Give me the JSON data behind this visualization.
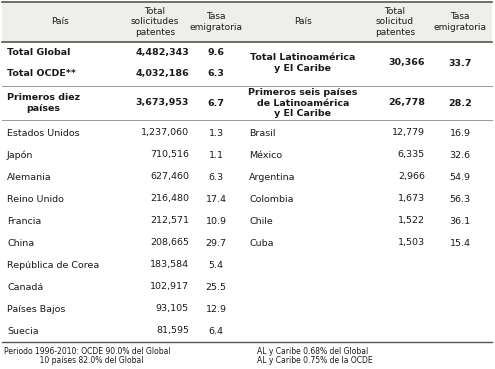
{
  "col_headers_left": [
    "País",
    "Total\nsolicitudes\npatentes",
    "Tasa\nemigratoria"
  ],
  "col_headers_right": [
    "País",
    "Total\nsolicitud\npatentes",
    "Tasa\nemigratoria"
  ],
  "left_rows": [
    {
      "label": "Total Global",
      "val": "4,482,343",
      "tasa": "9.6",
      "bold": true,
      "sep_after": false
    },
    {
      "label": "Total OCDE**",
      "val": "4,032,186",
      "tasa": "6.3",
      "bold": true,
      "sep_after": true
    },
    {
      "label": "Primeros diez\npaíses",
      "val": "3,673,953",
      "tasa": "6.7",
      "bold": true,
      "sep_after": true
    },
    {
      "label": "Estados Unidos",
      "val": "1,237,060",
      "tasa": "1.3",
      "bold": false,
      "sep_after": false
    },
    {
      "label": "Japón",
      "val": "710,516",
      "tasa": "1.1",
      "bold": false,
      "sep_after": false
    },
    {
      "label": "Alemania",
      "val": "627,460",
      "tasa": "6.3",
      "bold": false,
      "sep_after": false
    },
    {
      "label": "Reino Unido",
      "val": "216,480",
      "tasa": "17.4",
      "bold": false,
      "sep_after": false
    },
    {
      "label": "Francia",
      "val": "212,571",
      "tasa": "10.9",
      "bold": false,
      "sep_after": false
    },
    {
      "label": "China",
      "val": "208,665",
      "tasa": "29.7",
      "bold": false,
      "sep_after": false
    },
    {
      "label": "República de Corea",
      "val": "183,584",
      "tasa": "5.4",
      "bold": false,
      "sep_after": false
    },
    {
      "label": "Canadá",
      "val": "102,917",
      "tasa": "25.5",
      "bold": false,
      "sep_after": false
    },
    {
      "label": "Países Bajos",
      "val": "93,105",
      "tasa": "12.9",
      "bold": false,
      "sep_after": false
    },
    {
      "label": "Suecia",
      "val": "81,595",
      "tasa": "6.4",
      "bold": false,
      "sep_after": false
    }
  ],
  "right_rows": [
    {
      "label": "Total Latinoamérica\ny El Caribe",
      "val": "30,366",
      "tasa": "33.7",
      "bold": true,
      "sep_after": true,
      "rowspan": 2
    },
    {
      "label": "",
      "val": "",
      "tasa": "",
      "bold": false,
      "sep_after": false,
      "rowspan": 1
    },
    {
      "label": "Primeros seis países\nde Latinoamérica\ny El Caribe",
      "val": "26,778",
      "tasa": "28.2",
      "bold": true,
      "sep_after": true,
      "rowspan": 1
    },
    {
      "label": "Brasil",
      "val": "12,779",
      "tasa": "16.9",
      "bold": false,
      "sep_after": false,
      "rowspan": 1
    },
    {
      "label": "México",
      "val": "6,335",
      "tasa": "32.6",
      "bold": false,
      "sep_after": false,
      "rowspan": 1
    },
    {
      "label": "Argentina",
      "val": "2,966",
      "tasa": "54.9",
      "bold": false,
      "sep_after": false,
      "rowspan": 1
    },
    {
      "label": "Colombia",
      "val": "1,673",
      "tasa": "56.3",
      "bold": false,
      "sep_after": false,
      "rowspan": 1
    },
    {
      "label": "Chile",
      "val": "1,522",
      "tasa": "36.1",
      "bold": false,
      "sep_after": false,
      "rowspan": 1
    },
    {
      "label": "Cuba",
      "val": "1,503",
      "tasa": "15.4",
      "bold": false,
      "sep_after": false,
      "rowspan": 1
    },
    {
      "label": "",
      "val": "",
      "tasa": "",
      "bold": false,
      "sep_after": false,
      "rowspan": 1
    },
    {
      "label": "",
      "val": "",
      "tasa": "",
      "bold": false,
      "sep_after": false,
      "rowspan": 1
    },
    {
      "label": "",
      "val": "",
      "tasa": "",
      "bold": false,
      "sep_after": false,
      "rowspan": 1
    },
    {
      "label": "",
      "val": "",
      "tasa": "",
      "bold": false,
      "sep_after": false,
      "rowspan": 1
    }
  ],
  "footer1": "Periodo 1996-2010: OCDE 90.0% del Global",
  "footer2": "               10 países 82.0% del Global",
  "footer3": "AL y Caribe 0.68% del Global",
  "footer4": "AL y Caribe 0.75% de la OCDE",
  "bg_color": "#ffffff",
  "text_color": "#1a1a1a",
  "border_color": "#555555"
}
